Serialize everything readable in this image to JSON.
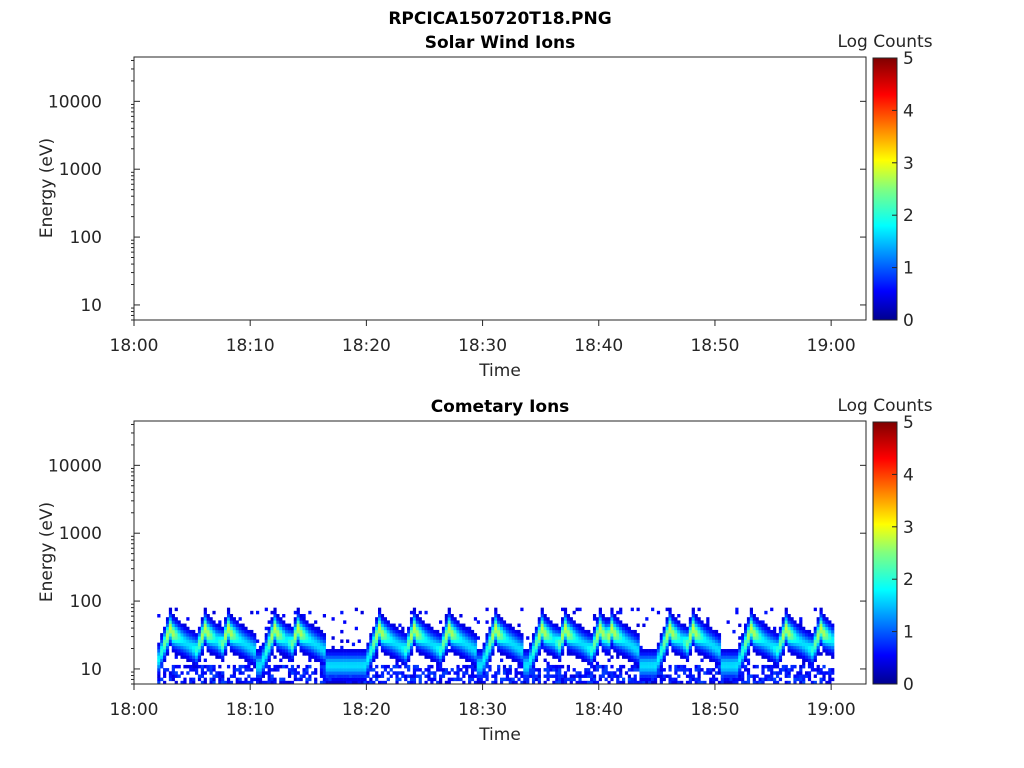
{
  "figure_title": "RPCICA150720T18.PNG",
  "colorbar": {
    "label": "Log Counts",
    "ticks": [
      "0",
      "1",
      "2",
      "3",
      "4",
      "5"
    ],
    "colormap": "jet",
    "colors": [
      "#00008f",
      "#0000ff",
      "#0080ff",
      "#00ffff",
      "#80ff80",
      "#ffff00",
      "#ff8000",
      "#ff0000",
      "#800000"
    ]
  },
  "chart_data": [
    {
      "type": "heatmap",
      "title": "Solar Wind Ions",
      "xlabel": "Time",
      "ylabel": "Energy (eV)",
      "x_ticks": [
        "18:00",
        "18:10",
        "18:20",
        "18:30",
        "18:40",
        "18:50",
        "19:00"
      ],
      "y_ticks": [
        "10",
        "100",
        "1000",
        "10000"
      ],
      "y_scale": "log",
      "ylim": [
        6,
        45000
      ],
      "xlim": [
        "18:00",
        "19:03"
      ],
      "clim": [
        0,
        5
      ],
      "data": "empty"
    },
    {
      "type": "heatmap",
      "title": "Cometary Ions",
      "xlabel": "Time",
      "ylabel": "Energy (eV)",
      "x_ticks": [
        "18:00",
        "18:10",
        "18:20",
        "18:30",
        "18:40",
        "18:50",
        "19:00"
      ],
      "y_ticks": [
        "10",
        "100",
        "1000",
        "10000"
      ],
      "y_scale": "log",
      "ylim": [
        6,
        45000
      ],
      "xlim": [
        "18:00",
        "19:03"
      ],
      "clim": [
        0,
        5
      ],
      "data_extent": {
        "x_start": "18:02",
        "x_end": "19:00",
        "energy_max_eV": 80
      },
      "band_peak_times": [
        "18:03",
        "18:06",
        "18:08",
        "18:12",
        "18:14",
        "18:21",
        "18:24",
        "18:27",
        "18:31",
        "18:35",
        "18:37",
        "18:40",
        "18:41",
        "18:46",
        "18:48",
        "18:53",
        "18:56",
        "18:59"
      ],
      "typical_band_energy_eV": 20,
      "max_log_counts": 2.7
    }
  ]
}
